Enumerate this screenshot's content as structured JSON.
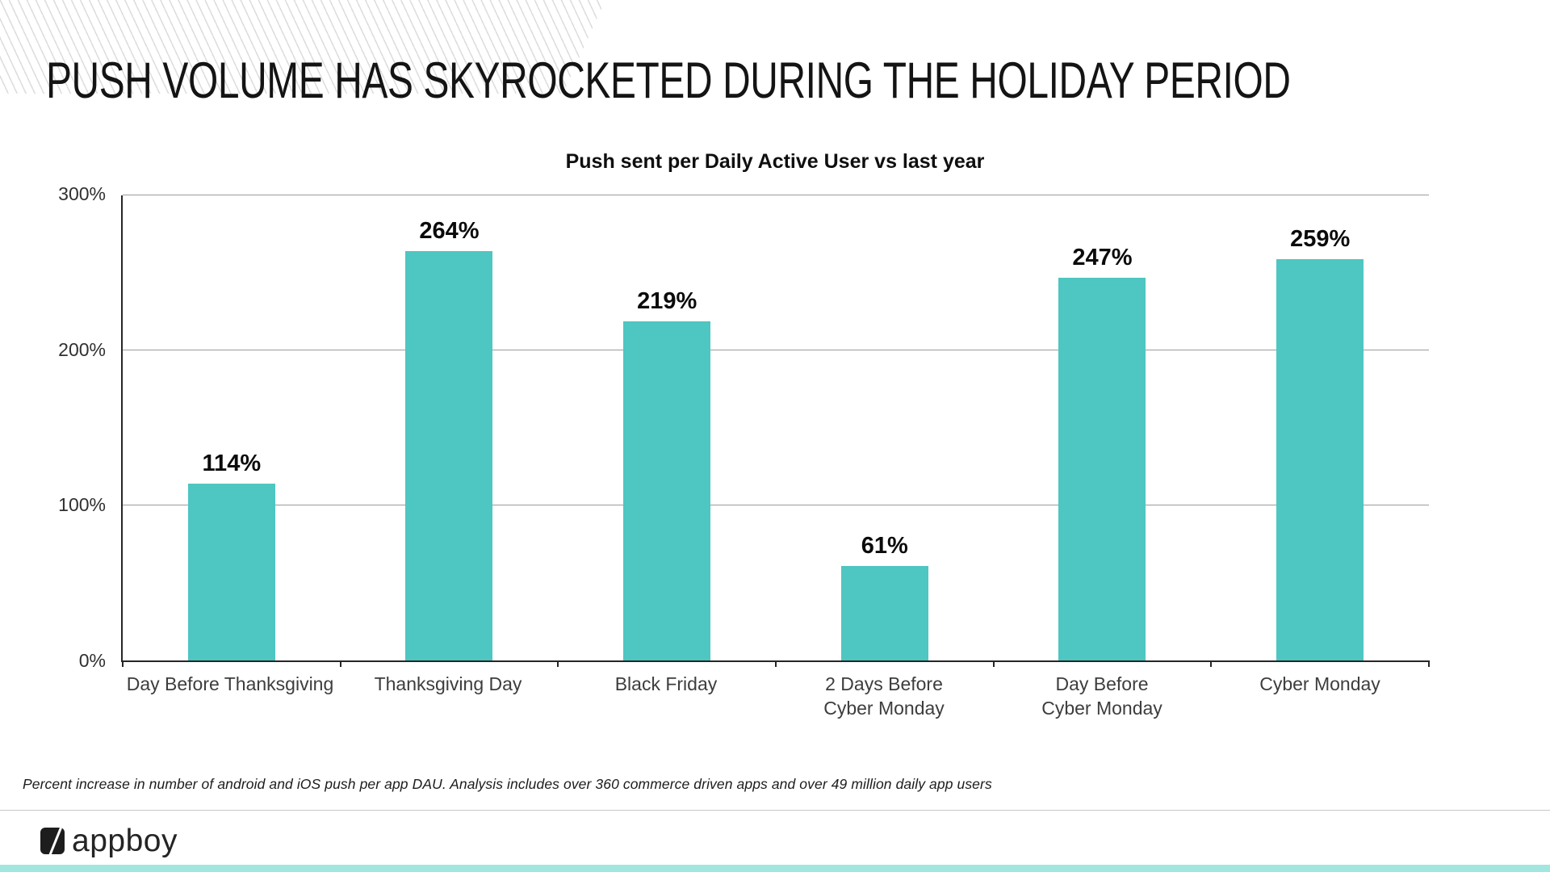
{
  "header": {
    "title": "PUSH VOLUME HAS SKYROCKETED DURING THE HOLIDAY PERIOD"
  },
  "chart_data": {
    "type": "bar",
    "title": "Push sent per Daily Active User vs last year",
    "categories": [
      "Day Before Thanksgiving",
      "Thanksgiving Day",
      "Black Friday",
      "2 Days Before\nCyber Monday",
      "Day Before\nCyber Monday",
      "Cyber Monday"
    ],
    "values": [
      114,
      264,
      219,
      61,
      247,
      259
    ],
    "value_labels": [
      "114%",
      "264%",
      "219%",
      "61%",
      "247%",
      "259%"
    ],
    "y_ticks": [
      {
        "value": 0,
        "label": "0%"
      },
      {
        "value": 100,
        "label": "100%"
      },
      {
        "value": 200,
        "label": "200%"
      },
      {
        "value": 300,
        "label": "300%"
      }
    ],
    "ylim": [
      0,
      300
    ],
    "xlabel": "",
    "ylabel": "",
    "grid": true,
    "legend": false,
    "bar_color": "#4EC6C2",
    "gridline_color": "#9b9b9b",
    "axis_color": "#262626"
  },
  "footnote": {
    "text": "Percent increase in number of android and iOS push per app DAU.  Analysis includes over 360 commerce driven apps and over 49 million daily app users"
  },
  "footer": {
    "logo_text": "appboy",
    "accent_bar_color": "#A2E6E0"
  }
}
